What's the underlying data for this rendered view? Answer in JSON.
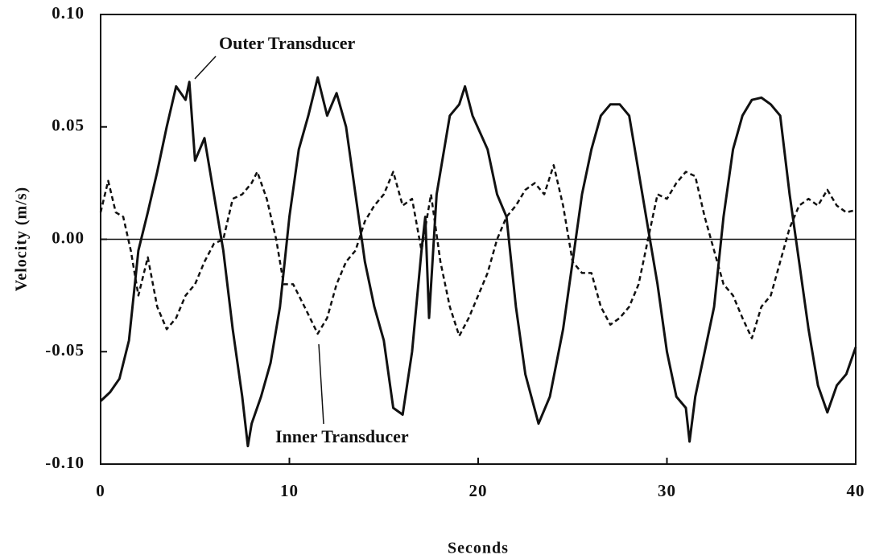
{
  "chart_data": {
    "type": "line",
    "xlabel": "Seconds",
    "ylabel": "Velocity (m/s)",
    "xlim": [
      0,
      40
    ],
    "ylim": [
      -0.1,
      0.1
    ],
    "xticks": [
      0,
      10,
      20,
      30,
      40
    ],
    "yticks": [
      {
        "value": -0.1,
        "label": "-0.10"
      },
      -0.05,
      {
        "value": 0,
        "label": "0.00"
      },
      0.05,
      {
        "value": 0.1,
        "label": "0.10"
      }
    ],
    "zero_line": true,
    "annotations": [
      "Outer Transducer",
      "Inner Transducer"
    ],
    "series": [
      {
        "name": "Outer Transducer",
        "color": "#111111",
        "line_style": "solid",
        "x": [
          0,
          0.5,
          1,
          1.5,
          2,
          2.5,
          3,
          3.5,
          4,
          4.5,
          4.7,
          5,
          5.5,
          6,
          6.5,
          7,
          7.5,
          7.8,
          8,
          8.5,
          9,
          9.5,
          10,
          10.5,
          11,
          11.5,
          12,
          12.5,
          13,
          13.5,
          14,
          14.5,
          15,
          15.5,
          16,
          16.5,
          17,
          17.2,
          17.4,
          17.8,
          18.5,
          19,
          19.3,
          19.7,
          20.5,
          21,
          21.5,
          22,
          22.5,
          23.2,
          23.8,
          24.5,
          25,
          25.5,
          26,
          26.5,
          27,
          27.5,
          28,
          28.5,
          29,
          29.5,
          30,
          30.5,
          31,
          31.2,
          31.5,
          32,
          32.5,
          33,
          33.5,
          34,
          34.5,
          35,
          35.5,
          36,
          36.5,
          37,
          37.5,
          38,
          38.5,
          39,
          39.5,
          40
        ],
        "values": [
          -0.072,
          -0.068,
          -0.062,
          -0.045,
          -0.005,
          0.012,
          0.03,
          0.05,
          0.068,
          0.062,
          0.07,
          0.035,
          0.045,
          0.02,
          -0.005,
          -0.04,
          -0.07,
          -0.092,
          -0.082,
          -0.07,
          -0.055,
          -0.03,
          0.01,
          0.04,
          0.055,
          0.072,
          0.055,
          0.065,
          0.05,
          0.02,
          -0.01,
          -0.03,
          -0.045,
          -0.075,
          -0.078,
          -0.05,
          -0.005,
          0.01,
          -0.035,
          0.02,
          0.055,
          0.06,
          0.068,
          0.055,
          0.04,
          0.02,
          0.01,
          -0.03,
          -0.06,
          -0.082,
          -0.07,
          -0.04,
          -0.01,
          0.02,
          0.04,
          0.055,
          0.06,
          0.06,
          0.055,
          0.03,
          0.005,
          -0.02,
          -0.05,
          -0.07,
          -0.075,
          -0.09,
          -0.07,
          -0.05,
          -0.03,
          0.01,
          0.04,
          0.055,
          0.062,
          0.063,
          0.06,
          0.055,
          0.02,
          -0.01,
          -0.04,
          -0.065,
          -0.077,
          -0.065,
          -0.06,
          -0.048
        ]
      },
      {
        "name": "Inner Transducer",
        "color": "#111111",
        "line_style": "dashed",
        "x": [
          0,
          0.4,
          0.8,
          1.2,
          1.6,
          2,
          2.5,
          3,
          3.5,
          4,
          4.5,
          5,
          5.5,
          6,
          6.5,
          7,
          7.5,
          8,
          8.3,
          8.8,
          9.3,
          9.7,
          10.2,
          10.8,
          11.5,
          12,
          12.5,
          13,
          13.5,
          14,
          14.5,
          15,
          15.5,
          16,
          16.5,
          17,
          17.5,
          18,
          18.5,
          19,
          19.5,
          20,
          20.5,
          21,
          21.5,
          22,
          22.5,
          23,
          23.5,
          24,
          24.5,
          25,
          25.5,
          26,
          26.5,
          27,
          27.5,
          28,
          28.5,
          29,
          29.5,
          30,
          30.5,
          31,
          31.5,
          32,
          32.5,
          33,
          33.5,
          34,
          34.5,
          35,
          35.5,
          36,
          36.5,
          37,
          37.5,
          38,
          38.5,
          39,
          39.5,
          40
        ],
        "values": [
          0.012,
          0.026,
          0.012,
          0.01,
          -0.005,
          -0.025,
          -0.008,
          -0.03,
          -0.04,
          -0.035,
          -0.025,
          -0.02,
          -0.01,
          -0.002,
          0.0,
          0.018,
          0.02,
          0.025,
          0.03,
          0.018,
          0.0,
          -0.02,
          -0.02,
          -0.03,
          -0.042,
          -0.035,
          -0.02,
          -0.01,
          -0.005,
          0.008,
          0.015,
          0.02,
          0.03,
          0.015,
          0.018,
          -0.005,
          0.02,
          -0.01,
          -0.03,
          -0.043,
          -0.035,
          -0.025,
          -0.015,
          0.0,
          0.01,
          0.015,
          0.022,
          0.025,
          0.02,
          0.033,
          0.015,
          -0.01,
          -0.015,
          -0.015,
          -0.03,
          -0.038,
          -0.035,
          -0.03,
          -0.02,
          0.0,
          0.02,
          0.018,
          0.025,
          0.03,
          0.028,
          0.01,
          -0.005,
          -0.02,
          -0.025,
          -0.035,
          -0.044,
          -0.03,
          -0.025,
          -0.01,
          0.005,
          0.015,
          0.018,
          0.015,
          0.022,
          0.015,
          0.012,
          0.013
        ]
      }
    ]
  }
}
